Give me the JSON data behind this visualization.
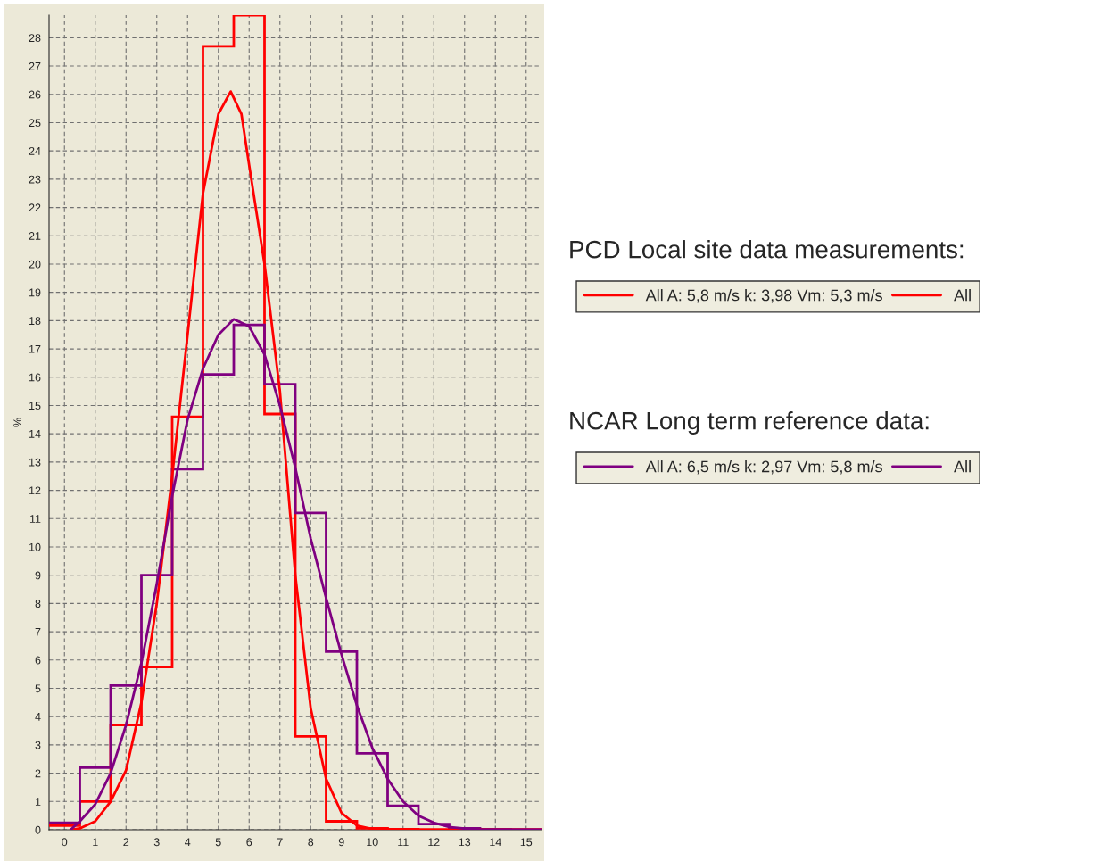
{
  "chart_data": {
    "type": "histogram",
    "ylabel": "%",
    "bins": [
      -0.5,
      0.5,
      1.5,
      2.5,
      3.5,
      4.5,
      5.5,
      6.5,
      7.5,
      8.5,
      9.5,
      10.5,
      11.5,
      12.5,
      13.5,
      14.5,
      15.5
    ],
    "series": [
      {
        "name": "All",
        "color": "#ff0000",
        "values": [
          0.15,
          1.0,
          3.7,
          5.75,
          14.6,
          27.7,
          28.8,
          14.7,
          3.3,
          0.3,
          0.05,
          0.02,
          0,
          0,
          0,
          0
        ]
      },
      {
        "type": "line",
        "name": "All A: 5,8 m/s k: 3,98 Vm: 5,3 m/s",
        "color": "#ff0000",
        "x": [
          0.2,
          0.5,
          1,
          1.5,
          2,
          2.5,
          3,
          3.5,
          4,
          4.5,
          5,
          5.4,
          5.75,
          6,
          6.5,
          7,
          7.5,
          8,
          8.5,
          9,
          9.5,
          10,
          11,
          15.5
        ],
        "values": [
          0,
          0.05,
          0.3,
          1.0,
          2.1,
          4.5,
          8.0,
          12.5,
          17.5,
          22.5,
          25.3,
          26.1,
          25.3,
          23.5,
          20.0,
          15.5,
          9.0,
          4.3,
          1.8,
          0.6,
          0.15,
          0.03,
          0,
          0
        ]
      },
      {
        "name": "All",
        "color": "#800080",
        "values": [
          0.25,
          2.2,
          5.1,
          9.0,
          12.75,
          16.1,
          17.85,
          15.75,
          11.2,
          6.3,
          2.7,
          0.85,
          0.2,
          0.05,
          0.02,
          0
        ]
      },
      {
        "type": "line",
        "name": "All A: 6,5 m/s k: 2,97 Vm: 5,8 m/s",
        "color": "#7f0081",
        "x": [
          0.2,
          0.5,
          1,
          1.5,
          2,
          2.5,
          3,
          3.5,
          4,
          4.5,
          5,
          5.5,
          6,
          6.5,
          7,
          7.5,
          8,
          8.5,
          9,
          9.5,
          10,
          10.5,
          11,
          11.5,
          12,
          12.5,
          13,
          13.5,
          15.5
        ],
        "values": [
          0,
          0.3,
          0.9,
          2.0,
          3.7,
          5.9,
          8.7,
          11.8,
          14.5,
          16.3,
          17.5,
          18.05,
          17.8,
          16.8,
          15.0,
          12.8,
          10.3,
          8.2,
          6.2,
          4.4,
          2.9,
          1.8,
          1.0,
          0.5,
          0.25,
          0.1,
          0.04,
          0.01,
          0
        ]
      }
    ],
    "annotations": [
      "PCD Local site data measurements:",
      "NCAR Long term reference data:"
    ],
    "xlim": [
      -0.5,
      15.5
    ],
    "ylim": [
      0,
      28.8
    ],
    "xticks": [
      0,
      1,
      2,
      3,
      4,
      5,
      6,
      7,
      8,
      9,
      10,
      11,
      12,
      13,
      14,
      15
    ],
    "yticks": [
      0,
      1,
      2,
      3,
      4,
      5,
      6,
      7,
      8,
      9,
      10,
      11,
      12,
      13,
      14,
      15,
      16,
      17,
      18,
      19,
      20,
      21,
      22,
      23,
      24,
      25,
      26,
      27,
      28
    ],
    "grid": true,
    "legend": "right",
    "line_style": "solid"
  }
}
